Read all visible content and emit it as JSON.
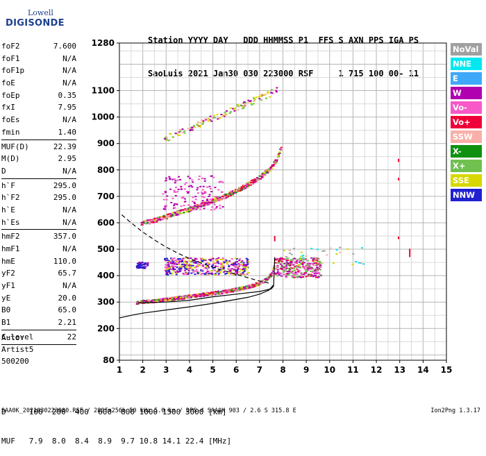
{
  "logo": {
    "line1": "Lowell",
    "line2": "DIGISONDE"
  },
  "header": {
    "line1": "Station YYYY DAY   DDD HHMMSS P1  FFS S AXN PPS IGA PS",
    "line2": "SaoLuis 2021 Jan30 030 223000 RSF     1 715 100 00- 11"
  },
  "params": [
    {
      "k": "foF2",
      "v": "7.600"
    },
    {
      "k": "foF1",
      "v": "N/A"
    },
    {
      "k": "foF1p",
      "v": "N/A"
    },
    {
      "k": "foE",
      "v": "N/A"
    },
    {
      "k": "foEp",
      "v": "0.35"
    },
    {
      "k": "fxI",
      "v": "7.95"
    },
    {
      "k": "foEs",
      "v": "N/A"
    },
    {
      "k": "fmin",
      "v": "1.40"
    },
    {
      "sep": true
    },
    {
      "k": "MUF(D)",
      "v": "22.39"
    },
    {
      "k": "M(D)",
      "v": "2.95"
    },
    {
      "k": "D",
      "v": "N/A"
    },
    {
      "sep": true
    },
    {
      "k": "h`F",
      "v": "295.0"
    },
    {
      "k": "h`F2",
      "v": "295.0"
    },
    {
      "k": "h`E",
      "v": "N/A"
    },
    {
      "k": "h`Es",
      "v": "N/A"
    },
    {
      "sep": true
    },
    {
      "k": "hmF2",
      "v": "357.0"
    },
    {
      "k": "hmF1",
      "v": "N/A"
    },
    {
      "k": "hmE",
      "v": "110.0"
    },
    {
      "k": "yF2",
      "v": "65.7"
    },
    {
      "k": "yF1",
      "v": "N/A"
    },
    {
      "k": "yE",
      "v": "20.0"
    },
    {
      "k": "B0",
      "v": "65.0"
    },
    {
      "k": "B1",
      "v": "2.21"
    },
    {
      "sep": true
    },
    {
      "k": "C-level",
      "v": "22"
    },
    {
      "sep": true
    }
  ],
  "extra": {
    "auto": "Auto:",
    "artist": "Artist5",
    "code": "500200"
  },
  "legend": [
    {
      "label": "NoVal",
      "color": "#a0a0a0"
    },
    {
      "label": "NNE",
      "color": "#00e8f0"
    },
    {
      "label": "E",
      "color": "#40a8f8"
    },
    {
      "label": "W",
      "color": "#b000b0"
    },
    {
      "label": "Vo-",
      "color": "#f858c8"
    },
    {
      "label": "Vo+",
      "color": "#f00038"
    },
    {
      "label": "SSW",
      "color": "#f8b0a8"
    },
    {
      "label": "X-",
      "color": "#109010"
    },
    {
      "label": "X+",
      "color": "#70c050"
    },
    {
      "label": "SSE",
      "color": "#d8d800"
    },
    {
      "label": "NNW",
      "color": "#2020d0"
    }
  ],
  "muf_table": {
    "line1": "D     100  200  400  600  800 1000 1500 3000 [km]",
    "line2": "MUF   7.9  8.0  8.4  8.9  9.7 10.8 14.1 22.4 [MHz]"
  },
  "footer": "SAA0K_2021030223000.RSF / 280fx256h 50 kHz 5.0 km / DPS-4 SAA0K 903 / 2.6 S 315.8 E",
  "version": "Ion2Png 1.3.17",
  "chart_data": {
    "type": "scatter",
    "xlim": [
      1,
      15
    ],
    "ylim": [
      80,
      1280
    ],
    "xticks": [
      1,
      2,
      3,
      4,
      5,
      6,
      7,
      8,
      9,
      10,
      11,
      12,
      13,
      14,
      15
    ],
    "yticks": [
      80,
      200,
      300,
      400,
      500,
      600,
      700,
      800,
      900,
      1000,
      1100,
      1280
    ],
    "grid": true,
    "trace_o_F2": [
      [
        1.6,
        300
      ],
      [
        2,
        303
      ],
      [
        2.5,
        307
      ],
      [
        3,
        312
      ],
      [
        3.5,
        318
      ],
      [
        4,
        324
      ],
      [
        4.5,
        330
      ],
      [
        5,
        336
      ],
      [
        5.5,
        342
      ],
      [
        6,
        350
      ],
      [
        6.5,
        360
      ],
      [
        7,
        375
      ],
      [
        7.3,
        390
      ],
      [
        7.5,
        410
      ],
      [
        7.6,
        440
      ],
      [
        7.65,
        480
      ]
    ],
    "trace_2hop": [
      [
        1.8,
        598
      ],
      [
        2.5,
        612
      ],
      [
        3,
        626
      ],
      [
        3.5,
        640
      ],
      [
        4,
        654
      ],
      [
        4.5,
        670
      ],
      [
        5,
        686
      ],
      [
        5.5,
        704
      ],
      [
        6,
        724
      ],
      [
        6.5,
        748
      ],
      [
        7,
        775
      ],
      [
        7.4,
        805
      ],
      [
        7.7,
        840
      ],
      [
        7.9,
        890
      ]
    ],
    "profile_solid": [
      [
        1,
        240
      ],
      [
        1.5,
        250
      ],
      [
        2,
        258
      ],
      [
        3,
        270
      ],
      [
        4,
        282
      ],
      [
        5,
        295
      ],
      [
        6,
        310
      ],
      [
        6.5,
        318
      ],
      [
        7,
        330
      ],
      [
        7.4,
        345
      ],
      [
        7.6,
        365
      ]
    ],
    "profile_upper": [
      [
        1.8,
        297
      ],
      [
        3,
        300
      ],
      [
        4,
        307
      ],
      [
        5,
        320
      ],
      [
        6,
        330
      ],
      [
        7,
        340
      ],
      [
        7.5,
        350
      ],
      [
        7.6,
        360
      ],
      [
        7.62,
        400
      ],
      [
        7.65,
        470
      ]
    ],
    "dashed_curve": [
      [
        1.1,
        630
      ],
      [
        1.5,
        600
      ],
      [
        2,
        565
      ],
      [
        2.5,
        535
      ],
      [
        3,
        508
      ],
      [
        3.5,
        485
      ],
      [
        4,
        465
      ],
      [
        4.5,
        447
      ],
      [
        5,
        432
      ],
      [
        5.5,
        418
      ],
      [
        6,
        405
      ],
      [
        6.5,
        392
      ],
      [
        7,
        380
      ],
      [
        7.5,
        370
      ]
    ]
  }
}
